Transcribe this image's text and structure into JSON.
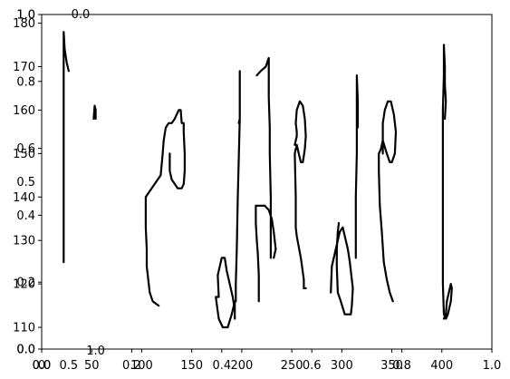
{
  "chart_data": {
    "type": "line",
    "title": "",
    "xlabel": "",
    "ylabel": "",
    "grid": false,
    "main_axes": {
      "xlim": [
        0,
        450
      ],
      "ylim": [
        105,
        182
      ],
      "xticks": [
        "0",
        "50",
        "100",
        "150",
        "200",
        "250",
        "300",
        "350",
        "400"
      ],
      "xtick_values": [
        0,
        50,
        100,
        150,
        200,
        250,
        300,
        350,
        400
      ],
      "yticks": [
        "110",
        "120",
        "130",
        "140",
        "150",
        "160",
        "170",
        "180"
      ],
      "ytick_values": [
        110,
        120,
        130,
        140,
        150,
        160,
        170,
        180
      ]
    },
    "overlay_axes": {
      "xlim": [
        0,
        1
      ],
      "ylim": [
        0,
        1
      ],
      "xticks": [
        "0.0",
        "0.2",
        "0.4",
        "0.6",
        "0.8",
        "1.0"
      ],
      "xtick_values": [
        0.0,
        0.2,
        0.4,
        0.6,
        0.8,
        1.0
      ],
      "yticks": [
        "0.0",
        "0.2",
        "0.4",
        "0.6",
        "0.8",
        "1.0"
      ],
      "ytick_values": [
        0.0,
        0.2,
        0.4,
        0.6,
        0.8,
        1.0
      ]
    },
    "inner_axes": {
      "xticks": [
        "0.0",
        "0.5",
        "1.0"
      ],
      "xtick_values": [
        0.0,
        0.5,
        1.0
      ],
      "x_positions": [
        0.0,
        0.06,
        0.12
      ],
      "yticks": [
        "0.0",
        "0.5",
        "1.0"
      ],
      "ytick_values": [
        0.0,
        0.5,
        1.0
      ],
      "y_positions": [
        0.0,
        0.5,
        1.0
      ]
    },
    "strokes": [
      [
        [
          22,
          125
        ],
        [
          22,
          150
        ],
        [
          22,
          160
        ],
        [
          22,
          175
        ],
        [
          22,
          178
        ],
        [
          23,
          174
        ],
        [
          25,
          171
        ],
        [
          27,
          169
        ]
      ],
      [
        [
          52,
          158
        ],
        [
          53,
          161
        ],
        [
          54,
          160
        ],
        [
          54,
          158
        ]
      ],
      [
        [
          128,
          150
        ],
        [
          128,
          146
        ],
        [
          130,
          144
        ],
        [
          133,
          143
        ],
        [
          136,
          142
        ],
        [
          140,
          142
        ],
        [
          142,
          143
        ],
        [
          143,
          146
        ],
        [
          143,
          150
        ],
        [
          142,
          155
        ],
        [
          142,
          157
        ],
        [
          140,
          157
        ],
        [
          139,
          160
        ],
        [
          137,
          160
        ],
        [
          135,
          159
        ],
        [
          133,
          158
        ],
        [
          130,
          157
        ],
        [
          127,
          157
        ],
        [
          124,
          156
        ],
        [
          122,
          153
        ],
        [
          121,
          150
        ],
        [
          119,
          145
        ],
        [
          104,
          140
        ],
        [
          104,
          133
        ],
        [
          105,
          128
        ],
        [
          105,
          124
        ],
        [
          108,
          118
        ],
        [
          111,
          116
        ],
        [
          117,
          115
        ]
      ],
      [
        [
          177,
          117
        ],
        [
          176,
          122
        ],
        [
          178,
          124
        ],
        [
          180,
          126
        ],
        [
          183,
          126
        ],
        [
          185,
          123
        ],
        [
          188,
          120
        ],
        [
          191,
          117
        ],
        [
          193,
          114
        ],
        [
          193,
          112
        ],
        [
          193,
          116
        ],
        [
          190,
          113
        ],
        [
          186,
          110
        ],
        [
          181,
          110
        ],
        [
          177,
          112
        ],
        [
          174,
          117
        ],
        [
          177,
          117
        ]
      ],
      [
        [
          194,
          116
        ],
        [
          194,
          120
        ],
        [
          195,
          128
        ],
        [
          196,
          140
        ],
        [
          198,
          158
        ],
        [
          198,
          162
        ],
        [
          198,
          169
        ],
        [
          198,
          158
        ],
        [
          197,
          157
        ]
      ],
      [
        [
          217,
          116
        ],
        [
          217,
          122
        ],
        [
          216,
          127
        ],
        [
          215,
          130
        ],
        [
          214,
          134
        ],
        [
          214,
          138
        ],
        [
          218,
          138
        ],
        [
          223,
          138
        ],
        [
          227,
          137
        ],
        [
          230,
          135
        ],
        [
          232,
          132
        ],
        [
          233,
          130
        ],
        [
          234,
          128
        ],
        [
          232,
          126
        ]
      ],
      [
        [
          215,
          168
        ],
        [
          219,
          169
        ],
        [
          224,
          170
        ],
        [
          227,
          172
        ],
        [
          227,
          168
        ],
        [
          227,
          163
        ],
        [
          228,
          156
        ],
        [
          228,
          150
        ],
        [
          229,
          140
        ],
        [
          229,
          134
        ],
        [
          229,
          126
        ]
      ],
      [
        [
          253,
          152
        ],
        [
          255,
          154
        ],
        [
          255,
          155
        ],
        [
          254,
          157
        ],
        [
          255,
          160
        ],
        [
          258,
          162
        ],
        [
          261,
          161
        ],
        [
          263,
          158
        ],
        [
          264,
          154
        ],
        [
          263,
          151
        ],
        [
          261,
          148
        ],
        [
          259,
          148
        ],
        [
          257,
          150
        ],
        [
          255,
          152
        ],
        [
          253,
          150
        ],
        [
          254,
          140
        ],
        [
          254,
          133
        ],
        [
          255,
          131
        ],
        [
          259,
          126
        ],
        [
          262,
          121
        ],
        [
          262,
          119
        ],
        [
          264,
          119
        ]
      ],
      [
        [
          289,
          118
        ],
        [
          290,
          124
        ],
        [
          292,
          126
        ],
        [
          295,
          129
        ],
        [
          298,
          132
        ],
        [
          301,
          133
        ],
        [
          303,
          131
        ],
        [
          306,
          128
        ],
        [
          308,
          125
        ],
        [
          310,
          121
        ],
        [
          311,
          119
        ],
        [
          310,
          115
        ],
        [
          309,
          113
        ],
        [
          306,
          113
        ],
        [
          303,
          113
        ],
        [
          299,
          116
        ],
        [
          296,
          118
        ],
        [
          295,
          124
        ],
        [
          295,
          128
        ],
        [
          296,
          132
        ],
        [
          297,
          134
        ]
      ],
      [
        [
          314,
          126
        ],
        [
          314,
          140
        ],
        [
          315,
          150
        ],
        [
          315,
          162
        ],
        [
          315,
          168
        ],
        [
          316,
          162
        ],
        [
          316,
          156
        ]
      ],
      [
        [
          341,
          150
        ],
        [
          341,
          155
        ],
        [
          341,
          157
        ],
        [
          343,
          160
        ],
        [
          346,
          162
        ],
        [
          349,
          162
        ],
        [
          352,
          159
        ],
        [
          354,
          155
        ],
        [
          353,
          150
        ],
        [
          350,
          148
        ],
        [
          348,
          148
        ],
        [
          345,
          150
        ],
        [
          341,
          153
        ],
        [
          339,
          151
        ],
        [
          337,
          150
        ],
        [
          337,
          146
        ],
        [
          338,
          138
        ],
        [
          340,
          132
        ],
        [
          342,
          125
        ],
        [
          345,
          121
        ],
        [
          348,
          118
        ],
        [
          351,
          116
        ]
      ],
      [
        [
          402,
          112
        ],
        [
          404,
          113
        ],
        [
          405,
          116
        ],
        [
          407,
          118
        ],
        [
          409,
          120
        ],
        [
          410,
          119
        ],
        [
          409,
          116
        ],
        [
          406,
          113
        ],
        [
          404,
          112
        ],
        [
          402,
          113
        ],
        [
          401,
          120
        ],
        [
          401,
          130
        ],
        [
          401,
          140
        ],
        [
          401,
          150
        ],
        [
          401,
          160
        ],
        [
          402,
          168
        ],
        [
          402,
          175
        ],
        [
          403,
          170
        ],
        [
          403,
          166
        ],
        [
          404,
          162
        ],
        [
          403,
          158
        ]
      ]
    ]
  }
}
